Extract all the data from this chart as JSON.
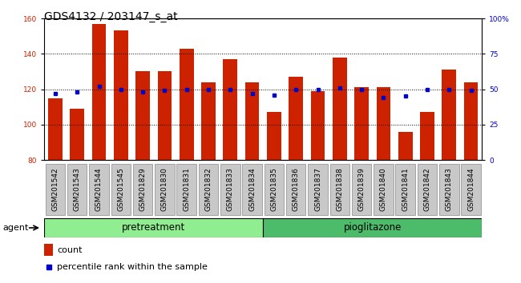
{
  "title": "GDS4132 / 203147_s_at",
  "samples": [
    "GSM201542",
    "GSM201543",
    "GSM201544",
    "GSM201545",
    "GSM201829",
    "GSM201830",
    "GSM201831",
    "GSM201832",
    "GSM201833",
    "GSM201834",
    "GSM201835",
    "GSM201836",
    "GSM201837",
    "GSM201838",
    "GSM201839",
    "GSM201840",
    "GSM201841",
    "GSM201842",
    "GSM201843",
    "GSM201844"
  ],
  "counts": [
    115,
    109,
    157,
    153,
    130,
    130,
    143,
    124,
    137,
    124,
    107,
    127,
    119,
    138,
    121,
    121,
    96,
    107,
    131,
    124
  ],
  "percentile_ranks": [
    47,
    48,
    52,
    50,
    48,
    49,
    50,
    50,
    50,
    47,
    46,
    50,
    50,
    51,
    50,
    44,
    45,
    50,
    50,
    49
  ],
  "groups": [
    "pretreatment",
    "pretreatment",
    "pretreatment",
    "pretreatment",
    "pretreatment",
    "pretreatment",
    "pretreatment",
    "pretreatment",
    "pretreatment",
    "pretreatment",
    "pioglitazone",
    "pioglitazone",
    "pioglitazone",
    "pioglitazone",
    "pioglitazone",
    "pioglitazone",
    "pioglitazone",
    "pioglitazone",
    "pioglitazone",
    "pioglitazone"
  ],
  "pretreatment_color": "#90EE90",
  "pioglitazone_color": "#4CBB6A",
  "bar_color": "#CC2200",
  "dot_color": "#0000CC",
  "ymin": 80,
  "ymax": 160,
  "yticks": [
    80,
    100,
    120,
    140,
    160
  ],
  "right_yticks": [
    0,
    25,
    50,
    75,
    100
  ],
  "right_ylabels": [
    "0",
    "25",
    "50",
    "75",
    "100%"
  ],
  "left_tick_color": "#CC2200",
  "right_tick_color": "#0000CC",
  "grid_color": "#000000",
  "agent_label": "agent",
  "legend_count_label": "count",
  "legend_percentile_label": "percentile rank within the sample",
  "title_fontsize": 10,
  "tick_fontsize": 6.5,
  "group_fontsize": 8.5,
  "agent_fontsize": 8,
  "legend_fontsize": 8
}
